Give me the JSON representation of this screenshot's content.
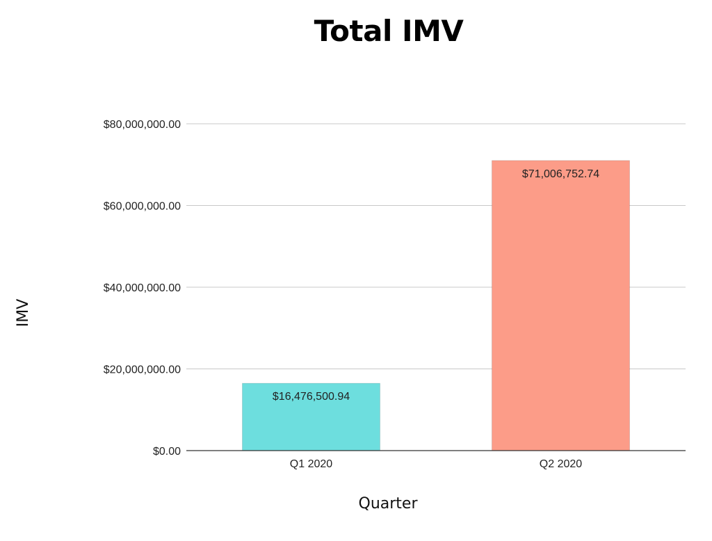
{
  "chart_data": {
    "type": "bar",
    "title": "Total IMV",
    "xlabel": "Quarter",
    "ylabel": "IMV",
    "categories": [
      "Q1 2020",
      "Q2 2020"
    ],
    "values": [
      16476500.94,
      71006752.74
    ],
    "value_labels": [
      "$16,476,500.94",
      "$71,006,752.74"
    ],
    "bar_colors": [
      "#6ddede",
      "#fc9c88"
    ],
    "ylim": [
      0,
      80000000
    ],
    "yticks": [
      0,
      20000000,
      40000000,
      60000000,
      80000000
    ],
    "ytick_labels": [
      "$0.00",
      "$20,000,000.00",
      "$40,000,000.00",
      "$60,000,000.00",
      "$80,000,000.00"
    ],
    "grid": true,
    "legend": "none"
  },
  "colors": {
    "gridline": "#c8c8c8",
    "baseline": "#333333"
  }
}
